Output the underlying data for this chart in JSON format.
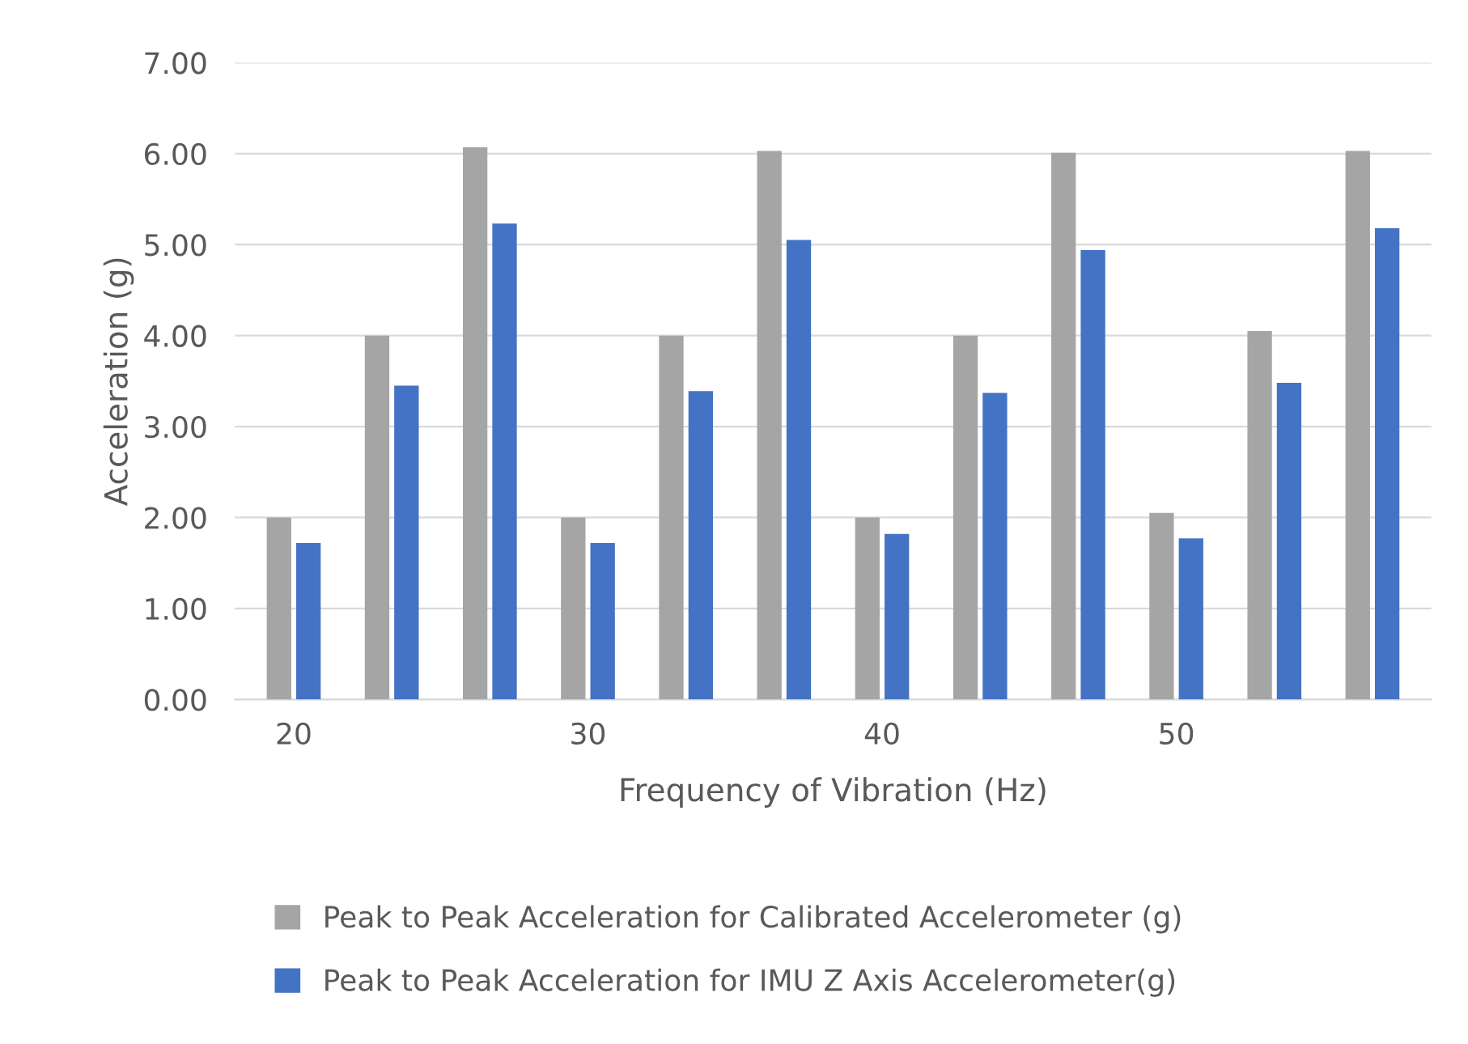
{
  "chart_data": {
    "type": "bar",
    "xlabel": "Frequency of Vibration (Hz)",
    "ylabel": "Acceleration (g)",
    "categories": [
      "20",
      null,
      null,
      "30",
      null,
      null,
      "40",
      null,
      null,
      "50",
      null,
      null
    ],
    "series": [
      {
        "name": "Peak to Peak Acceleration for Calibrated Accelerometer (g)",
        "color": "#a5a5a5",
        "values": [
          2.0,
          4.0,
          6.07,
          2.0,
          4.0,
          6.03,
          2.0,
          4.0,
          6.01,
          2.05,
          4.05,
          6.03
        ]
      },
      {
        "name": "Peak to Peak Acceleration for IMU Z Axis Accelerometer(g)",
        "color": "#4472c4",
        "values": [
          1.72,
          3.45,
          5.23,
          1.72,
          3.39,
          5.05,
          1.82,
          3.37,
          4.94,
          1.77,
          3.48,
          5.18
        ]
      }
    ],
    "ylim": [
      0,
      7
    ],
    "yticks": [
      {
        "value": 0,
        "label": "0.00"
      },
      {
        "value": 1,
        "label": "1.00"
      },
      {
        "value": 2,
        "label": "2.00"
      },
      {
        "value": 3,
        "label": "3.00"
      },
      {
        "value": 4,
        "label": "4.00"
      },
      {
        "value": 5,
        "label": "5.00"
      },
      {
        "value": 6,
        "label": "6.00"
      },
      {
        "value": 7,
        "label": "7.00"
      }
    ],
    "grid": "y",
    "legend": "bottom"
  }
}
